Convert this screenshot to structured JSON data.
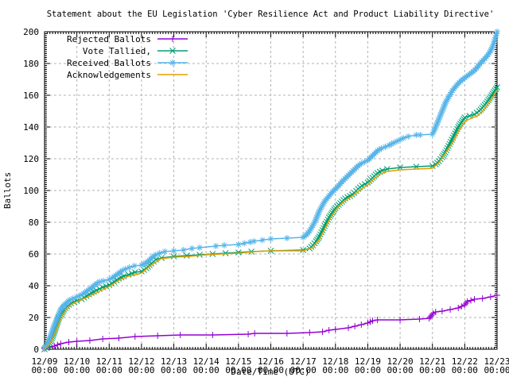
{
  "chart_data": {
    "type": "line",
    "title": "Statement about the EU Legislation 'Cyber Resilience Act and Product Liability Directive'",
    "xlabel": "Date/Time (UTC)",
    "ylabel": "Ballots",
    "x_unit": "days since 12/09 00:00 UTC",
    "xlim": [
      0,
      14
    ],
    "ylim": [
      0,
      200
    ],
    "y_tick_step": 20,
    "y_minor_step": 1.25,
    "x_minor_step_days": 0.0833,
    "grid": true,
    "legend_position": "top-left",
    "background": "#ffffff",
    "grid_color": "#b3b3b3",
    "axis_color": "#000000",
    "x_ticks": [
      {
        "day": 0,
        "label": "12/09",
        "sub": "00:00"
      },
      {
        "day": 1,
        "label": "12/10",
        "sub": "00:00"
      },
      {
        "day": 2,
        "label": "12/11",
        "sub": "00:00"
      },
      {
        "day": 3,
        "label": "12/12",
        "sub": "00:00"
      },
      {
        "day": 4,
        "label": "12/13",
        "sub": "00:00"
      },
      {
        "day": 5,
        "label": "12/14",
        "sub": "00:00"
      },
      {
        "day": 6,
        "label": "12/15",
        "sub": "00:00"
      },
      {
        "day": 7,
        "label": "12/16",
        "sub": "00:00"
      },
      {
        "day": 8,
        "label": "12/17",
        "sub": "00:00"
      },
      {
        "day": 9,
        "label": "12/18",
        "sub": "00:00"
      },
      {
        "day": 10,
        "label": "12/19",
        "sub": "00:00"
      },
      {
        "day": 11,
        "label": "12/20",
        "sub": "00:00"
      },
      {
        "day": 12,
        "label": "12/21",
        "sub": "00:00"
      },
      {
        "day": 13,
        "label": "12/22",
        "sub": "00:00"
      },
      {
        "day": 14,
        "label": "12/23",
        "sub": "00:00"
      }
    ],
    "series": [
      {
        "name": "Rejected Ballots",
        "color": "#9400d3",
        "marker": "plus",
        "points": [
          [
            0,
            0.5
          ],
          [
            0.3,
            2
          ],
          [
            0.5,
            3.5
          ],
          [
            0.75,
            4.5
          ],
          [
            1,
            5
          ],
          [
            1.4,
            5.5
          ],
          [
            1.8,
            6.5
          ],
          [
            2.3,
            7
          ],
          [
            2.8,
            8
          ],
          [
            3.5,
            8.5
          ],
          [
            4.2,
            9
          ],
          [
            5.2,
            9
          ],
          [
            6.3,
            9.5
          ],
          [
            6.5,
            10
          ],
          [
            7.5,
            10
          ],
          [
            8.2,
            10.5
          ],
          [
            8.6,
            11
          ],
          [
            8.8,
            12
          ],
          [
            9,
            12.5
          ],
          [
            9.4,
            13.5
          ],
          [
            9.6,
            14.5
          ],
          [
            9.8,
            15.5
          ],
          [
            10,
            16.5
          ],
          [
            10.15,
            18
          ],
          [
            10.3,
            18.5
          ],
          [
            11,
            18.5
          ],
          [
            11.6,
            19
          ],
          [
            11.9,
            19.5
          ],
          [
            12.02,
            22.5
          ],
          [
            12.1,
            23.5
          ],
          [
            12.3,
            24
          ],
          [
            12.55,
            25
          ],
          [
            12.8,
            26
          ],
          [
            13,
            28
          ],
          [
            13.08,
            30
          ],
          [
            13.3,
            31.5
          ],
          [
            13.55,
            32
          ],
          [
            13.8,
            33
          ],
          [
            14,
            34
          ]
        ]
      },
      {
        "name": "Vote Tallied,",
        "color": "#009e73",
        "marker": "cross",
        "points": [
          [
            0,
            0
          ],
          [
            0.1,
            2
          ],
          [
            0.18,
            5
          ],
          [
            0.25,
            8
          ],
          [
            0.3,
            11
          ],
          [
            0.35,
            14
          ],
          [
            0.4,
            17
          ],
          [
            0.45,
            20
          ],
          [
            0.52,
            22
          ],
          [
            0.6,
            25
          ],
          [
            0.7,
            27
          ],
          [
            0.82,
            29
          ],
          [
            1,
            30.5
          ],
          [
            1.15,
            31.5
          ],
          [
            1.3,
            33.5
          ],
          [
            1.45,
            35.5
          ],
          [
            1.6,
            37
          ],
          [
            1.8,
            39
          ],
          [
            2,
            40.5
          ],
          [
            2.15,
            42.5
          ],
          [
            2.3,
            44.5
          ],
          [
            2.45,
            46
          ],
          [
            2.6,
            47
          ],
          [
            2.8,
            48.5
          ],
          [
            3,
            49
          ],
          [
            3.15,
            51
          ],
          [
            3.3,
            54
          ],
          [
            3.45,
            56.5
          ],
          [
            3.62,
            57.5
          ],
          [
            4,
            58.5
          ],
          [
            4.4,
            59
          ],
          [
            4.8,
            59.5
          ],
          [
            5.2,
            60
          ],
          [
            5.6,
            60.5
          ],
          [
            6,
            61
          ],
          [
            6.4,
            61.5
          ],
          [
            7,
            62
          ],
          [
            8,
            62.5
          ],
          [
            8.2,
            63.5
          ],
          [
            8.3,
            65.5
          ],
          [
            8.4,
            68
          ],
          [
            8.5,
            71
          ],
          [
            8.6,
            75
          ],
          [
            8.7,
            79
          ],
          [
            8.8,
            83
          ],
          [
            8.9,
            86
          ],
          [
            9,
            89
          ],
          [
            9.1,
            91
          ],
          [
            9.2,
            93
          ],
          [
            9.3,
            95
          ],
          [
            9.45,
            96.5
          ],
          [
            9.58,
            98.5
          ],
          [
            9.7,
            101
          ],
          [
            9.82,
            103
          ],
          [
            10,
            105
          ],
          [
            10.1,
            107
          ],
          [
            10.2,
            109
          ],
          [
            10.3,
            111
          ],
          [
            10.45,
            112.5
          ],
          [
            10.6,
            113.5
          ],
          [
            11,
            114.5
          ],
          [
            11.5,
            115
          ],
          [
            12,
            115.5
          ],
          [
            12.1,
            116.5
          ],
          [
            12.2,
            118.5
          ],
          [
            12.3,
            121
          ],
          [
            12.4,
            124
          ],
          [
            12.5,
            128
          ],
          [
            12.6,
            132
          ],
          [
            12.7,
            136
          ],
          [
            12.8,
            140
          ],
          [
            12.9,
            143
          ],
          [
            13,
            146
          ],
          [
            13.15,
            147
          ],
          [
            13.3,
            148
          ],
          [
            13.45,
            150
          ],
          [
            13.58,
            153
          ],
          [
            13.7,
            156
          ],
          [
            13.8,
            159
          ],
          [
            13.9,
            162
          ],
          [
            14,
            165
          ]
        ]
      },
      {
        "name": "Received Ballots",
        "color": "#56b4e9",
        "marker": "star",
        "points": [
          [
            0,
            1
          ],
          [
            0.08,
            3
          ],
          [
            0.15,
            6
          ],
          [
            0.2,
            9
          ],
          [
            0.25,
            12
          ],
          [
            0.3,
            15
          ],
          [
            0.34,
            17
          ],
          [
            0.38,
            19
          ],
          [
            0.42,
            21
          ],
          [
            0.46,
            23
          ],
          [
            0.5,
            25
          ],
          [
            0.56,
            26.5
          ],
          [
            0.62,
            28
          ],
          [
            0.7,
            29.5
          ],
          [
            0.78,
            31
          ],
          [
            0.88,
            32
          ],
          [
            1,
            33
          ],
          [
            1.1,
            34
          ],
          [
            1.2,
            35
          ],
          [
            1.3,
            36.5
          ],
          [
            1.4,
            38
          ],
          [
            1.5,
            39.5
          ],
          [
            1.56,
            40.5
          ],
          [
            1.62,
            41.5
          ],
          [
            1.7,
            42.5
          ],
          [
            1.82,
            43
          ],
          [
            2,
            44
          ],
          [
            2.1,
            45
          ],
          [
            2.2,
            46.5
          ],
          [
            2.3,
            48
          ],
          [
            2.4,
            49.5
          ],
          [
            2.5,
            50.5
          ],
          [
            2.62,
            51.5
          ],
          [
            2.78,
            52.5
          ],
          [
            3,
            53
          ],
          [
            3.14,
            54.5
          ],
          [
            3.24,
            56
          ],
          [
            3.34,
            58
          ],
          [
            3.44,
            59.5
          ],
          [
            3.56,
            60.5
          ],
          [
            3.72,
            61.5
          ],
          [
            4,
            62
          ],
          [
            4.3,
            62.5
          ],
          [
            4.56,
            63.5
          ],
          [
            4.8,
            64
          ],
          [
            5.3,
            65
          ],
          [
            5.56,
            65.5
          ],
          [
            6,
            66
          ],
          [
            6.36,
            67.5
          ],
          [
            6.48,
            68
          ],
          [
            7,
            69.5
          ],
          [
            7.5,
            70
          ],
          [
            8,
            70.5
          ],
          [
            8.1,
            72
          ],
          [
            8.2,
            74.5
          ],
          [
            8.3,
            78
          ],
          [
            8.38,
            81
          ],
          [
            8.44,
            84
          ],
          [
            8.5,
            87
          ],
          [
            8.58,
            90
          ],
          [
            8.66,
            93
          ],
          [
            8.74,
            95
          ],
          [
            8.82,
            97
          ],
          [
            8.9,
            99
          ],
          [
            9,
            101
          ],
          [
            9.1,
            103
          ],
          [
            9.2,
            105.5
          ],
          [
            9.3,
            107.5
          ],
          [
            9.4,
            109.5
          ],
          [
            9.5,
            111.5
          ],
          [
            9.6,
            113.5
          ],
          [
            9.7,
            115.5
          ],
          [
            9.8,
            117
          ],
          [
            9.9,
            118
          ],
          [
            10,
            119
          ],
          [
            10.1,
            121
          ],
          [
            10.2,
            123
          ],
          [
            10.3,
            125
          ],
          [
            10.42,
            126.5
          ],
          [
            10.54,
            127.5
          ],
          [
            10.66,
            128.5
          ],
          [
            10.8,
            130
          ],
          [
            11,
            132
          ],
          [
            11.1,
            133
          ],
          [
            11.25,
            134
          ],
          [
            11.5,
            135
          ],
          [
            11.62,
            135
          ],
          [
            12,
            135.5
          ],
          [
            12.06,
            138
          ],
          [
            12.12,
            141
          ],
          [
            12.18,
            144
          ],
          [
            12.24,
            147
          ],
          [
            12.3,
            150
          ],
          [
            12.36,
            153
          ],
          [
            12.42,
            156
          ],
          [
            12.48,
            158
          ],
          [
            12.55,
            160.5
          ],
          [
            12.62,
            163
          ],
          [
            12.7,
            165
          ],
          [
            12.78,
            167
          ],
          [
            12.88,
            169
          ],
          [
            13,
            171
          ],
          [
            13.1,
            172.5
          ],
          [
            13.2,
            174
          ],
          [
            13.32,
            176
          ],
          [
            13.42,
            178.5
          ],
          [
            13.52,
            181
          ],
          [
            13.62,
            183
          ],
          [
            13.72,
            185.5
          ],
          [
            13.8,
            188
          ],
          [
            13.87,
            191
          ],
          [
            13.93,
            195
          ],
          [
            14,
            200
          ]
        ]
      },
      {
        "name": "Acknowledgements",
        "color": "#e69f00",
        "marker": "none",
        "points": [
          [
            0,
            0
          ],
          [
            0.15,
            3
          ],
          [
            0.3,
            9
          ],
          [
            0.4,
            14
          ],
          [
            0.5,
            19
          ],
          [
            0.6,
            23
          ],
          [
            0.72,
            26
          ],
          [
            0.85,
            28.5
          ],
          [
            1,
            30
          ],
          [
            1.3,
            32.5
          ],
          [
            1.6,
            35.5
          ],
          [
            2,
            39.5
          ],
          [
            2.3,
            43.5
          ],
          [
            2.6,
            46
          ],
          [
            3,
            48
          ],
          [
            3.3,
            53
          ],
          [
            3.6,
            57
          ],
          [
            4,
            58
          ],
          [
            4.5,
            58.5
          ],
          [
            5,
            59.5
          ],
          [
            5.5,
            60
          ],
          [
            6,
            60.5
          ],
          [
            6.5,
            61.5
          ],
          [
            7,
            62
          ],
          [
            8,
            62
          ],
          [
            8.3,
            64
          ],
          [
            8.5,
            69
          ],
          [
            8.7,
            77
          ],
          [
            8.85,
            83
          ],
          [
            9,
            87.5
          ],
          [
            9.2,
            92
          ],
          [
            9.4,
            95
          ],
          [
            9.6,
            97.5
          ],
          [
            9.8,
            101
          ],
          [
            10,
            103.5
          ],
          [
            10.2,
            107.5
          ],
          [
            10.4,
            110.5
          ],
          [
            10.6,
            112
          ],
          [
            11,
            113
          ],
          [
            11.5,
            113.5
          ],
          [
            12,
            114
          ],
          [
            12.2,
            117.5
          ],
          [
            12.35,
            122
          ],
          [
            12.5,
            126.5
          ],
          [
            12.65,
            131
          ],
          [
            12.8,
            137
          ],
          [
            12.95,
            142
          ],
          [
            13.05,
            144
          ],
          [
            13.2,
            145.5
          ],
          [
            13.4,
            147
          ],
          [
            13.6,
            151
          ],
          [
            13.8,
            157
          ],
          [
            13.9,
            160
          ],
          [
            14,
            163
          ]
        ]
      }
    ]
  }
}
